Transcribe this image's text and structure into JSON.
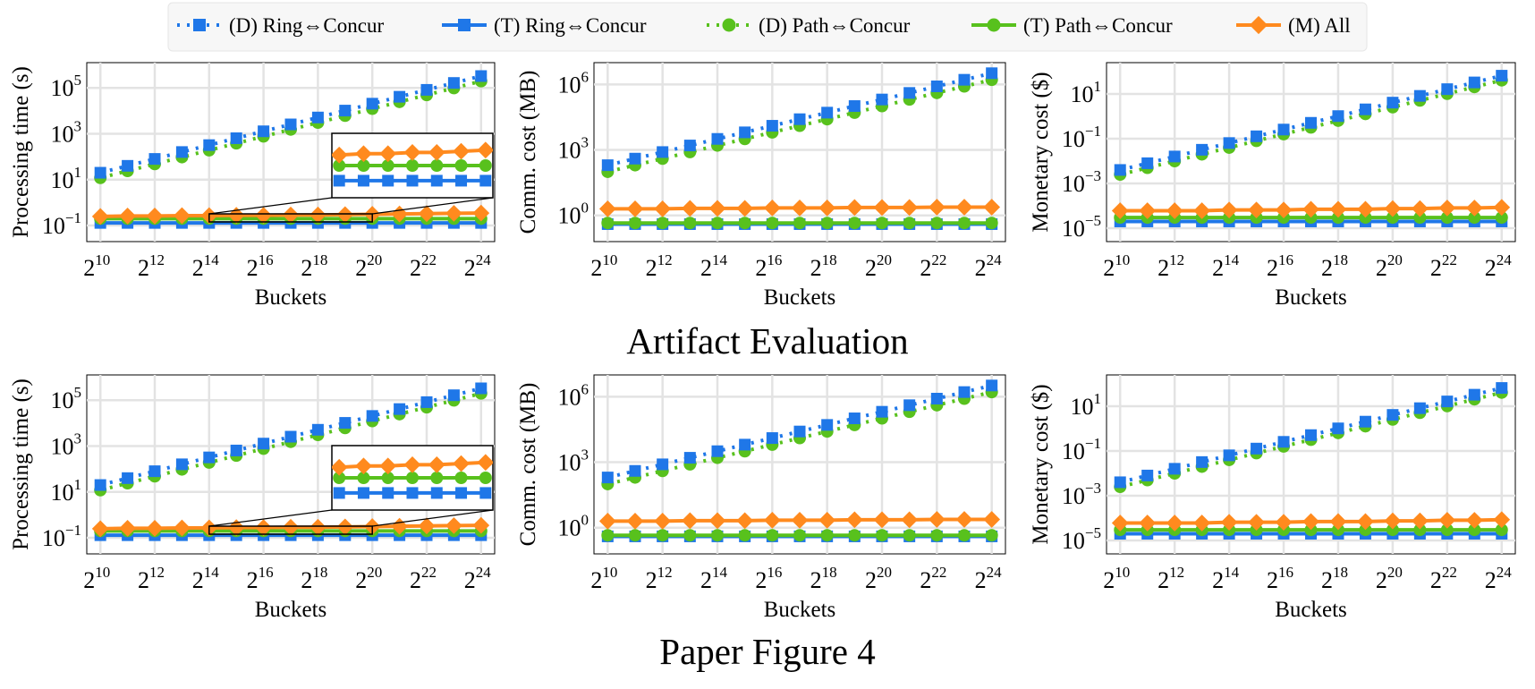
{
  "legend": {
    "items": [
      {
        "label": "(D) Ring⇔Concur",
        "color": "#1f77e8",
        "style": "dotted",
        "marker": "square"
      },
      {
        "label": "(T) Ring⇔Concur",
        "color": "#1f77e8",
        "style": "solid",
        "marker": "square"
      },
      {
        "label": "(D) Path⇔Concur",
        "color": "#58c11d",
        "style": "dotted",
        "marker": "circle"
      },
      {
        "label": "(T) Path⇔Concur",
        "color": "#58c11d",
        "style": "solid",
        "marker": "circle"
      },
      {
        "label": "(M) All",
        "color": "#ff8a1e",
        "style": "solid",
        "marker": "diamond"
      }
    ]
  },
  "sections": [
    {
      "title": "Artifact Evaluation"
    },
    {
      "title": "Paper Figure 4"
    }
  ],
  "chart_data": [
    {
      "type": "line",
      "section": "Artifact Evaluation",
      "xlabel": "Buckets",
      "ylabel": "Processing time (s)",
      "xscale": "log2",
      "yscale": "log10",
      "x_exponents": [
        10,
        11,
        12,
        13,
        14,
        15,
        16,
        17,
        18,
        19,
        20,
        21,
        22,
        23,
        24
      ],
      "x_tick_exponents": [
        10,
        12,
        14,
        16,
        18,
        20,
        22,
        24
      ],
      "y_tick_exponents": [
        -1,
        1,
        3,
        5
      ],
      "ylim_exp": [
        -1.7,
        6.1
      ],
      "grid": true,
      "inset": {
        "x_range_exp": [
          14,
          20
        ]
      },
      "series": [
        {
          "name": "(D) Ring⇔Concur",
          "values": [
            20,
            40,
            80,
            160,
            320,
            640,
            1280,
            2560,
            5120,
            10240,
            20480,
            40960,
            81920,
            163840,
            327680
          ]
        },
        {
          "name": "(T) Ring⇔Concur",
          "values": [
            0.13,
            0.13,
            0.13,
            0.13,
            0.13,
            0.13,
            0.13,
            0.13,
            0.13,
            0.13,
            0.13,
            0.13,
            0.13,
            0.13,
            0.13
          ]
        },
        {
          "name": "(D) Path⇔Concur",
          "values": [
            12,
            24,
            48,
            96,
            192,
            384,
            768,
            1536,
            3072,
            6144,
            12288,
            24576,
            49152,
            98304,
            196608
          ]
        },
        {
          "name": "(T) Path⇔Concur",
          "values": [
            0.2,
            0.2,
            0.2,
            0.2,
            0.2,
            0.2,
            0.2,
            0.2,
            0.2,
            0.2,
            0.2,
            0.2,
            0.2,
            0.2,
            0.2
          ]
        },
        {
          "name": "(M) All",
          "values": [
            0.25,
            0.26,
            0.26,
            0.27,
            0.27,
            0.28,
            0.28,
            0.29,
            0.29,
            0.3,
            0.31,
            0.32,
            0.33,
            0.34,
            0.35
          ]
        }
      ]
    },
    {
      "type": "line",
      "section": "Artifact Evaluation",
      "xlabel": "Buckets",
      "ylabel": "Comm. cost (MB)",
      "xscale": "log2",
      "yscale": "log10",
      "x_exponents": [
        10,
        11,
        12,
        13,
        14,
        15,
        16,
        17,
        18,
        19,
        20,
        21,
        22,
        23,
        24
      ],
      "x_tick_exponents": [
        10,
        12,
        14,
        16,
        18,
        20,
        22,
        24
      ],
      "y_tick_exponents": [
        0,
        3,
        6
      ],
      "ylim_exp": [
        -1.2,
        7.0
      ],
      "grid": true,
      "series": [
        {
          "name": "(D) Ring⇔Concur",
          "values": [
            200,
            400,
            800,
            1600,
            3200,
            6400,
            12800,
            25600,
            51200,
            102400,
            204800,
            409600,
            819200,
            1638400,
            3276800
          ]
        },
        {
          "name": "(T) Ring⇔Concur",
          "values": [
            0.4,
            0.4,
            0.4,
            0.4,
            0.4,
            0.4,
            0.4,
            0.4,
            0.4,
            0.4,
            0.4,
            0.4,
            0.4,
            0.4,
            0.4
          ]
        },
        {
          "name": "(D) Path⇔Concur",
          "values": [
            100,
            200,
            400,
            800,
            1600,
            3200,
            6400,
            12800,
            25600,
            51200,
            102400,
            204800,
            409600,
            819200,
            1638400
          ]
        },
        {
          "name": "(T) Path⇔Concur",
          "values": [
            0.45,
            0.45,
            0.45,
            0.45,
            0.45,
            0.45,
            0.45,
            0.45,
            0.45,
            0.45,
            0.45,
            0.45,
            0.45,
            0.45,
            0.45
          ]
        },
        {
          "name": "(M) All",
          "values": [
            2.0,
            2.0,
            2.0,
            2.1,
            2.1,
            2.1,
            2.2,
            2.2,
            2.2,
            2.3,
            2.3,
            2.3,
            2.4,
            2.4,
            2.4
          ]
        }
      ]
    },
    {
      "type": "line",
      "section": "Artifact Evaluation",
      "xlabel": "Buckets",
      "ylabel": "Monetary cost ($)",
      "xscale": "log2",
      "yscale": "log10",
      "x_exponents": [
        10,
        11,
        12,
        13,
        14,
        15,
        16,
        17,
        18,
        19,
        20,
        21,
        22,
        23,
        24
      ],
      "x_tick_exponents": [
        10,
        12,
        14,
        16,
        18,
        20,
        22,
        24
      ],
      "y_tick_exponents": [
        -5,
        -3,
        -1,
        1
      ],
      "ylim_exp": [
        -5.6,
        2.4
      ],
      "grid": true,
      "series": [
        {
          "name": "(D) Ring⇔Concur",
          "values": [
            0.004,
            0.008,
            0.016,
            0.032,
            0.064,
            0.128,
            0.256,
            0.512,
            1.024,
            2.048,
            4.096,
            8.192,
            16.384,
            32.768,
            65.536
          ]
        },
        {
          "name": "(T) Ring⇔Concur",
          "values": [
            2e-05,
            2e-05,
            2e-05,
            2e-05,
            2e-05,
            2e-05,
            2e-05,
            2e-05,
            2e-05,
            2e-05,
            2e-05,
            2e-05,
            2e-05,
            2e-05,
            2e-05
          ]
        },
        {
          "name": "(D) Path⇔Concur",
          "values": [
            0.0025,
            0.005,
            0.01,
            0.02,
            0.04,
            0.08,
            0.16,
            0.32,
            0.64,
            1.28,
            2.56,
            5.12,
            10.24,
            20.48,
            40.96
          ]
        },
        {
          "name": "(T) Path⇔Concur",
          "values": [
            3e-05,
            3e-05,
            3e-05,
            3e-05,
            3e-05,
            3e-05,
            3e-05,
            3e-05,
            3e-05,
            3e-05,
            3e-05,
            3e-05,
            3e-05,
            3e-05,
            3e-05
          ]
        },
        {
          "name": "(M) All",
          "values": [
            6e-05,
            6e-05,
            6e-05,
            6e-05,
            6.5e-05,
            6.5e-05,
            6.5e-05,
            7e-05,
            7e-05,
            7e-05,
            7.5e-05,
            7.5e-05,
            8e-05,
            8e-05,
            8.5e-05
          ]
        }
      ]
    },
    {
      "type": "line",
      "section": "Paper Figure 4",
      "xlabel": "Buckets",
      "ylabel": "Processing time (s)",
      "xscale": "log2",
      "yscale": "log10",
      "x_exponents": [
        10,
        11,
        12,
        13,
        14,
        15,
        16,
        17,
        18,
        19,
        20,
        21,
        22,
        23,
        24
      ],
      "x_tick_exponents": [
        10,
        12,
        14,
        16,
        18,
        20,
        22,
        24
      ],
      "y_tick_exponents": [
        -1,
        1,
        3,
        5
      ],
      "ylim_exp": [
        -1.7,
        6.1
      ],
      "grid": true,
      "inset": {
        "x_range_exp": [
          14,
          20
        ]
      },
      "series": [
        {
          "name": "(D) Ring⇔Concur",
          "values": [
            20,
            40,
            80,
            160,
            320,
            640,
            1280,
            2560,
            5120,
            10240,
            20480,
            40960,
            81920,
            163840,
            327680
          ]
        },
        {
          "name": "(T) Ring⇔Concur",
          "values": [
            0.13,
            0.13,
            0.13,
            0.13,
            0.13,
            0.13,
            0.13,
            0.13,
            0.13,
            0.13,
            0.13,
            0.13,
            0.13,
            0.13,
            0.13
          ]
        },
        {
          "name": "(D) Path⇔Concur",
          "values": [
            12,
            24,
            48,
            96,
            192,
            384,
            768,
            1536,
            3072,
            6144,
            12288,
            24576,
            49152,
            98304,
            196608
          ]
        },
        {
          "name": "(T) Path⇔Concur",
          "values": [
            0.2,
            0.2,
            0.2,
            0.2,
            0.2,
            0.2,
            0.2,
            0.2,
            0.2,
            0.2,
            0.2,
            0.2,
            0.2,
            0.2,
            0.2
          ]
        },
        {
          "name": "(M) All",
          "values": [
            0.25,
            0.26,
            0.26,
            0.27,
            0.27,
            0.28,
            0.28,
            0.29,
            0.29,
            0.3,
            0.31,
            0.32,
            0.33,
            0.34,
            0.35
          ]
        }
      ]
    },
    {
      "type": "line",
      "section": "Paper Figure 4",
      "xlabel": "Buckets",
      "ylabel": "Comm. cost (MB)",
      "xscale": "log2",
      "yscale": "log10",
      "x_exponents": [
        10,
        11,
        12,
        13,
        14,
        15,
        16,
        17,
        18,
        19,
        20,
        21,
        22,
        23,
        24
      ],
      "x_tick_exponents": [
        10,
        12,
        14,
        16,
        18,
        20,
        22,
        24
      ],
      "y_tick_exponents": [
        0,
        3,
        6
      ],
      "ylim_exp": [
        -1.2,
        7.0
      ],
      "grid": true,
      "series": [
        {
          "name": "(D) Ring⇔Concur",
          "values": [
            200,
            400,
            800,
            1600,
            3200,
            6400,
            12800,
            25600,
            51200,
            102400,
            204800,
            409600,
            819200,
            1638400,
            3276800
          ]
        },
        {
          "name": "(T) Ring⇔Concur",
          "values": [
            0.4,
            0.4,
            0.4,
            0.4,
            0.4,
            0.4,
            0.4,
            0.4,
            0.4,
            0.4,
            0.4,
            0.4,
            0.4,
            0.4,
            0.4
          ]
        },
        {
          "name": "(D) Path⇔Concur",
          "values": [
            100,
            200,
            400,
            800,
            1600,
            3200,
            6400,
            12800,
            25600,
            51200,
            102400,
            204800,
            409600,
            819200,
            1638400
          ]
        },
        {
          "name": "(T) Path⇔Concur",
          "values": [
            0.45,
            0.45,
            0.45,
            0.45,
            0.45,
            0.45,
            0.45,
            0.45,
            0.45,
            0.45,
            0.45,
            0.45,
            0.45,
            0.45,
            0.45
          ]
        },
        {
          "name": "(M) All",
          "values": [
            2.0,
            2.0,
            2.0,
            2.1,
            2.1,
            2.1,
            2.2,
            2.2,
            2.2,
            2.3,
            2.3,
            2.3,
            2.4,
            2.4,
            2.4
          ]
        }
      ]
    },
    {
      "type": "line",
      "section": "Paper Figure 4",
      "xlabel": "Buckets",
      "ylabel": "Monetary cost ($)",
      "xscale": "log2",
      "yscale": "log10",
      "x_exponents": [
        10,
        11,
        12,
        13,
        14,
        15,
        16,
        17,
        18,
        19,
        20,
        21,
        22,
        23,
        24
      ],
      "x_tick_exponents": [
        10,
        12,
        14,
        16,
        18,
        20,
        22,
        24
      ],
      "y_tick_exponents": [
        -5,
        -3,
        -1,
        1
      ],
      "ylim_exp": [
        -5.6,
        2.4
      ],
      "grid": true,
      "series": [
        {
          "name": "(D) Ring⇔Concur",
          "values": [
            0.004,
            0.008,
            0.016,
            0.032,
            0.064,
            0.128,
            0.256,
            0.512,
            1.024,
            2.048,
            4.096,
            8.192,
            16.384,
            32.768,
            65.536
          ]
        },
        {
          "name": "(T) Ring⇔Concur",
          "values": [
            2e-05,
            2e-05,
            2e-05,
            2e-05,
            2e-05,
            2e-05,
            2e-05,
            2e-05,
            2e-05,
            2e-05,
            2e-05,
            2e-05,
            2e-05,
            2e-05,
            2e-05
          ]
        },
        {
          "name": "(D) Path⇔Concur",
          "values": [
            0.0025,
            0.005,
            0.01,
            0.02,
            0.04,
            0.08,
            0.16,
            0.32,
            0.64,
            1.28,
            2.56,
            5.12,
            10.24,
            20.48,
            40.96
          ]
        },
        {
          "name": "(T) Path⇔Concur",
          "values": [
            3e-05,
            3e-05,
            3e-05,
            3e-05,
            3e-05,
            3e-05,
            3e-05,
            3e-05,
            3e-05,
            3e-05,
            3e-05,
            3e-05,
            3e-05,
            3e-05,
            3e-05
          ]
        },
        {
          "name": "(M) All",
          "values": [
            6e-05,
            6e-05,
            6e-05,
            6e-05,
            6.5e-05,
            6.5e-05,
            6.5e-05,
            7e-05,
            7e-05,
            7e-05,
            7.5e-05,
            7.5e-05,
            8e-05,
            8e-05,
            8.5e-05
          ]
        }
      ]
    }
  ]
}
